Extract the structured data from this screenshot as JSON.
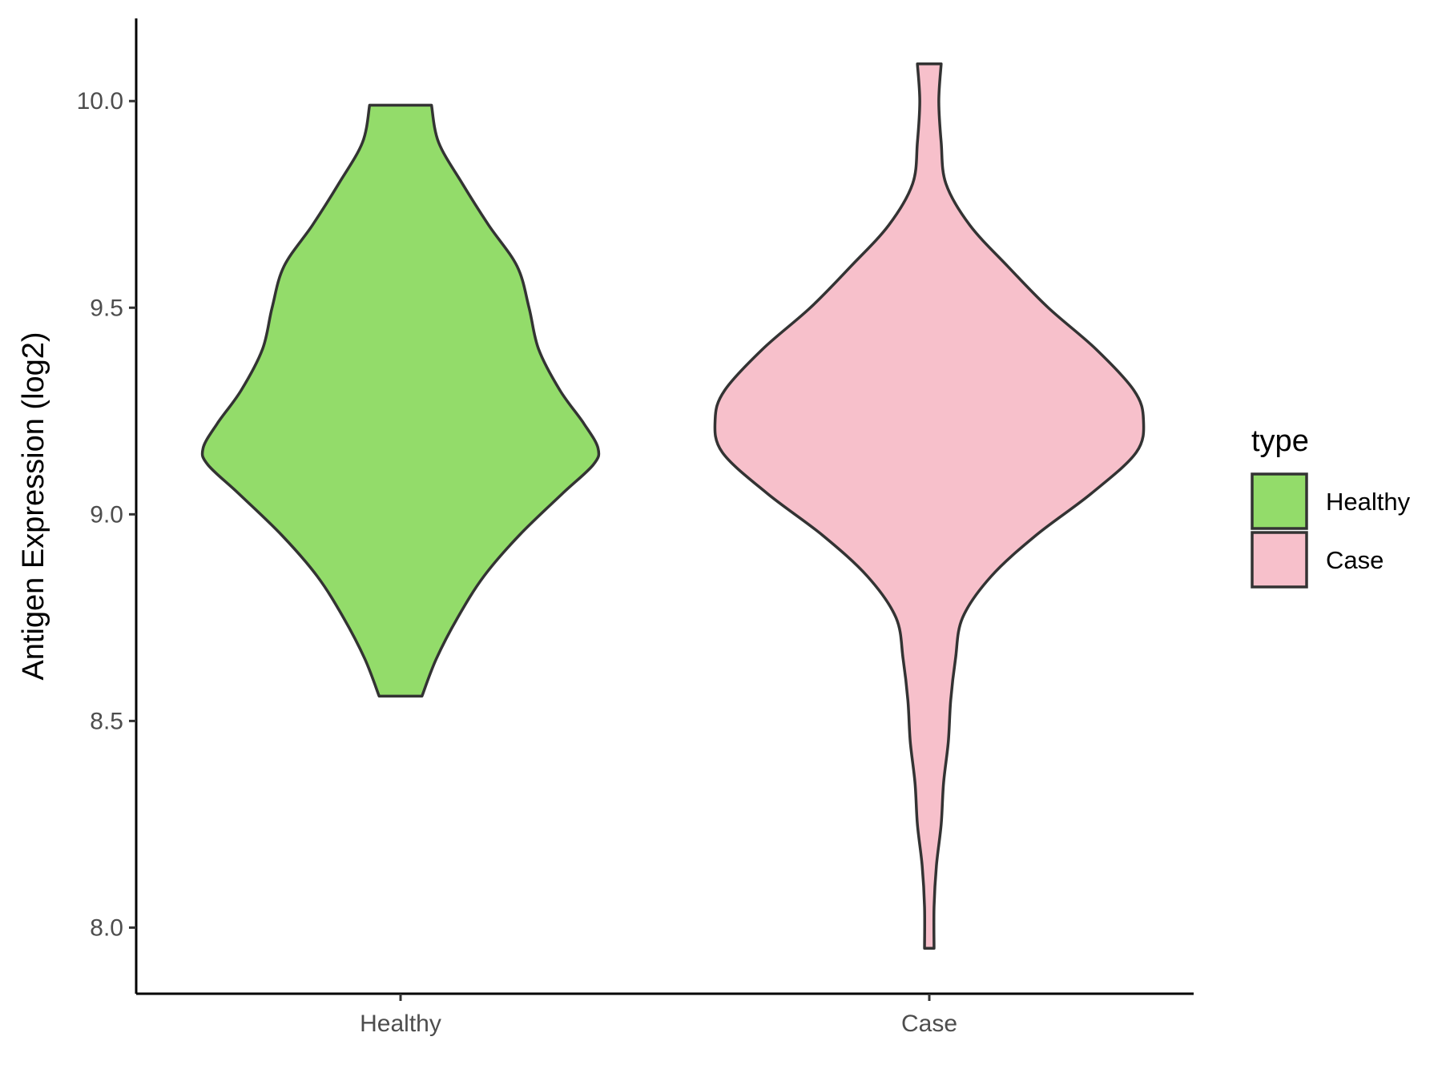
{
  "chart_data": {
    "type": "violin",
    "xlabel": "",
    "ylabel": "Antigen Expression (log2)",
    "ylim": [
      7.84,
      10.2
    ],
    "yticks": [
      8.0,
      8.5,
      9.0,
      9.5,
      10.0
    ],
    "ytick_labels": [
      "8.0",
      "8.5",
      "9.0",
      "9.5",
      "10.0"
    ],
    "categories": [
      "Healthy",
      "Case"
    ],
    "grid": false,
    "legend": {
      "title": "type",
      "position": "right",
      "entries": [
        "Healthy",
        "Case"
      ]
    },
    "series": [
      {
        "name": "Healthy",
        "color": "#93DC6A",
        "min": 8.56,
        "max": 9.99,
        "density": [
          {
            "y": 8.56,
            "w": 0.09
          },
          {
            "y": 8.65,
            "w": 0.15
          },
          {
            "y": 8.75,
            "w": 0.24
          },
          {
            "y": 8.85,
            "w": 0.35
          },
          {
            "y": 8.95,
            "w": 0.5
          },
          {
            "y": 9.05,
            "w": 0.68
          },
          {
            "y": 9.12,
            "w": 0.81
          },
          {
            "y": 9.16,
            "w": 0.83
          },
          {
            "y": 9.22,
            "w": 0.77
          },
          {
            "y": 9.3,
            "w": 0.67
          },
          {
            "y": 9.4,
            "w": 0.58
          },
          {
            "y": 9.5,
            "w": 0.54
          },
          {
            "y": 9.6,
            "w": 0.49
          },
          {
            "y": 9.7,
            "w": 0.37
          },
          {
            "y": 9.8,
            "w": 0.26
          },
          {
            "y": 9.9,
            "w": 0.16
          },
          {
            "y": 9.99,
            "w": 0.13
          }
        ]
      },
      {
        "name": "Case",
        "color": "#F7C0CB",
        "min": 7.95,
        "max": 10.09,
        "density": [
          {
            "y": 7.95,
            "w": 0.02
          },
          {
            "y": 8.05,
            "w": 0.02
          },
          {
            "y": 8.15,
            "w": 0.03
          },
          {
            "y": 8.25,
            "w": 0.05
          },
          {
            "y": 8.35,
            "w": 0.06
          },
          {
            "y": 8.45,
            "w": 0.08
          },
          {
            "y": 8.55,
            "w": 0.09
          },
          {
            "y": 8.65,
            "w": 0.11
          },
          {
            "y": 8.75,
            "w": 0.14
          },
          {
            "y": 8.85,
            "w": 0.26
          },
          {
            "y": 8.95,
            "w": 0.45
          },
          {
            "y": 9.05,
            "w": 0.68
          },
          {
            "y": 9.15,
            "w": 0.87
          },
          {
            "y": 9.23,
            "w": 0.9
          },
          {
            "y": 9.3,
            "w": 0.86
          },
          {
            "y": 9.4,
            "w": 0.7
          },
          {
            "y": 9.5,
            "w": 0.5
          },
          {
            "y": 9.6,
            "w": 0.33
          },
          {
            "y": 9.7,
            "w": 0.17
          },
          {
            "y": 9.8,
            "w": 0.07
          },
          {
            "y": 9.9,
            "w": 0.05
          },
          {
            "y": 10.0,
            "w": 0.04
          },
          {
            "y": 10.09,
            "w": 0.05
          }
        ]
      }
    ]
  }
}
